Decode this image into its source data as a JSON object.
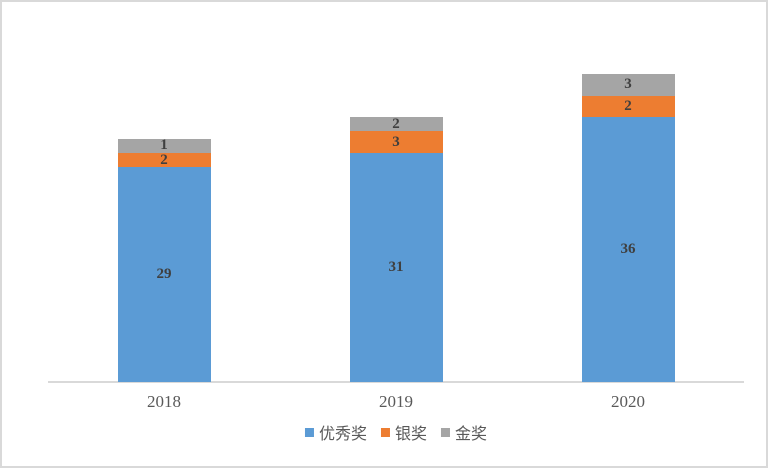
{
  "chart_data": {
    "type": "bar",
    "stacked": true,
    "title": "",
    "categories": [
      "2018",
      "2019",
      "2020"
    ],
    "series": [
      {
        "name": "优秀奖",
        "color": "#5B9BD5",
        "values": [
          29,
          31,
          36
        ],
        "rendered_heights": [
          30,
          32,
          37
        ]
      },
      {
        "name": "银奖",
        "color": "#ED7D31",
        "values": [
          2,
          3,
          2
        ],
        "rendered_heights": [
          2,
          3,
          3
        ]
      },
      {
        "name": "金奖",
        "color": "#A5A5A5",
        "values": [
          1,
          2,
          3
        ],
        "rendered_heights": [
          2,
          2,
          3
        ]
      }
    ],
    "y_axis": {
      "min": 0,
      "max": 50,
      "step": 5,
      "ticks": [
        0,
        5,
        10,
        15,
        20,
        25,
        30,
        35,
        40,
        45,
        50
      ]
    },
    "x_axis": {
      "labels": [
        "2018",
        "2019",
        "2020"
      ]
    },
    "legend": {
      "position": "bottom",
      "entries": [
        "优秀奖",
        "银奖",
        "金奖"
      ]
    },
    "grid": false,
    "colors": {
      "axis_line": "#d9d9d9",
      "tick_text": "#595959",
      "data_label_text": "#3f3f3f",
      "frame_border": "#d9d9d9",
      "background": "#ffffff"
    }
  }
}
